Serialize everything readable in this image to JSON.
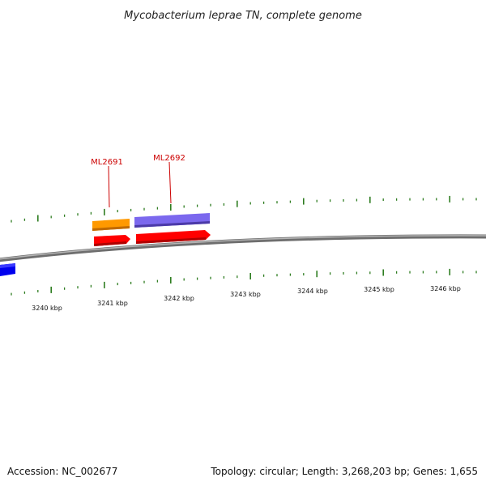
{
  "title": "Mycobacterium leprae TN, complete genome",
  "genes": [
    {
      "id": "ML2691",
      "color": "#ff9900"
    },
    {
      "id": "ML2692",
      "color": "#7b68ee"
    }
  ],
  "kbp_labels": [
    "3240 kbp",
    "3241 kbp",
    "3242 kbp",
    "3243 kbp",
    "3244 kbp",
    "3245 kbp",
    "3246 kbp"
  ],
  "colors": {
    "backbone": "#808080",
    "tick": "#2e7d20",
    "reverse_feature": "#ff0000",
    "blue_feature": "#0000ee",
    "label": "#cc0000"
  },
  "footer": {
    "accession": "Accession: NC_002677",
    "summary": "Topology: circular; Length: 3,268,203 bp; Genes: 1,655"
  }
}
